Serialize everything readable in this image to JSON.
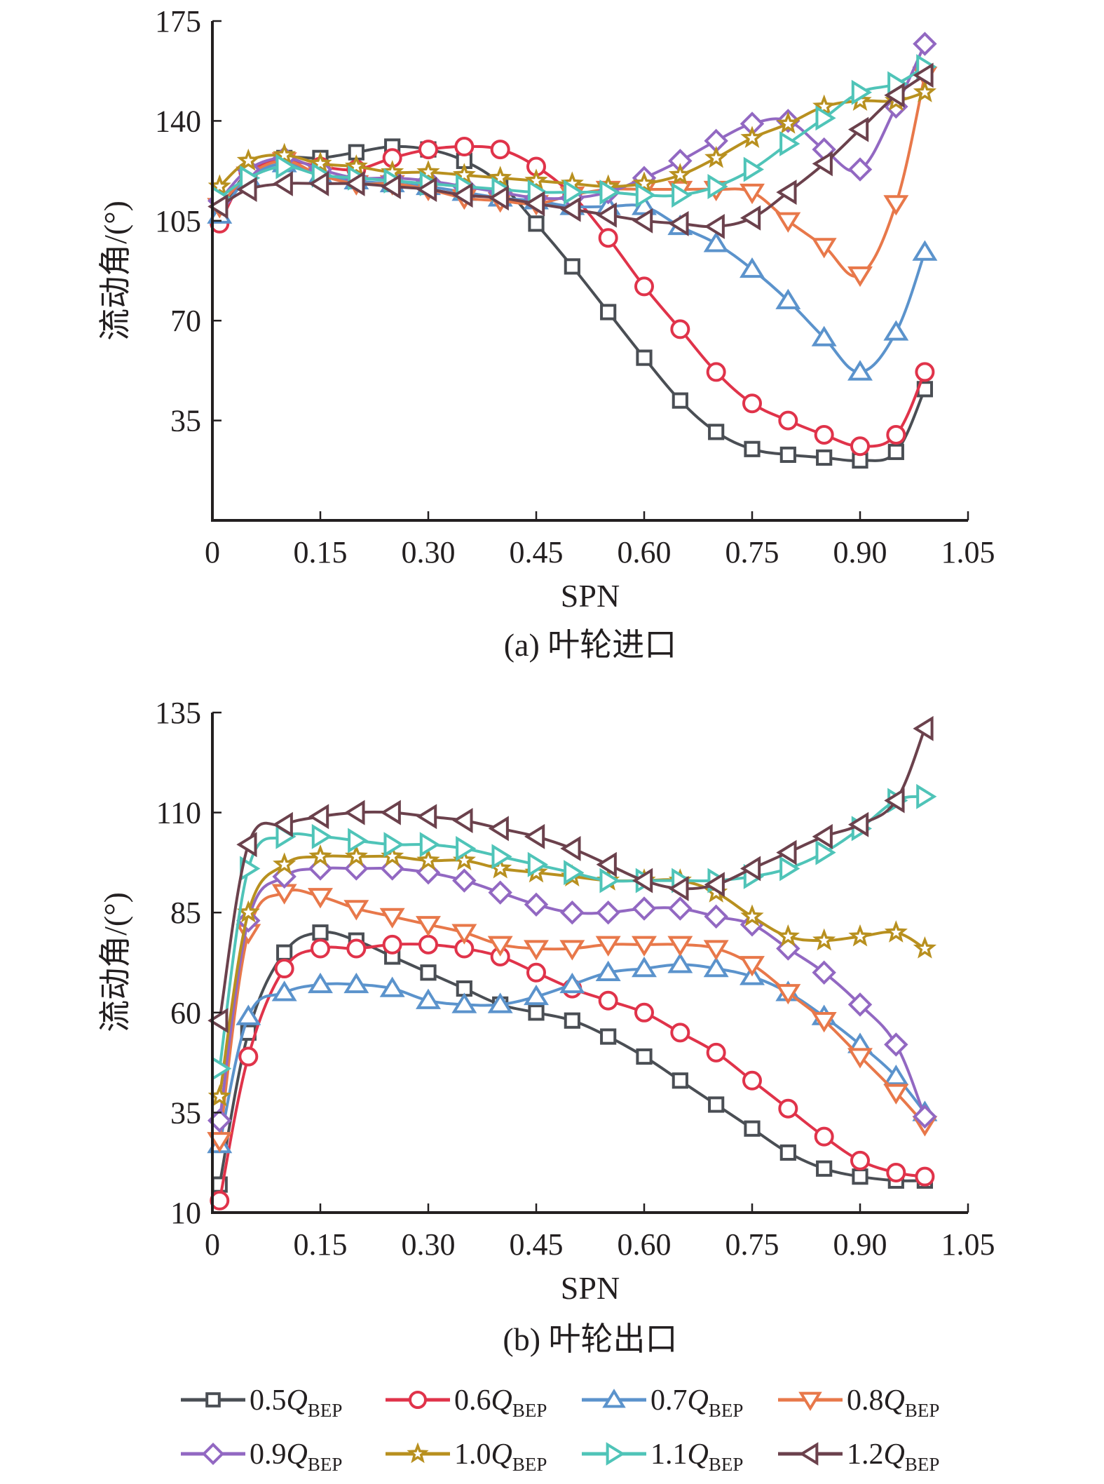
{
  "figure": {
    "legend": [
      {
        "prefix": "0.5",
        "q": "Q",
        "sub": "BEP",
        "color": "#4a4e54",
        "marker": "square"
      },
      {
        "prefix": "0.6",
        "q": "Q",
        "sub": "BEP",
        "color": "#e0334a",
        "marker": "circle"
      },
      {
        "prefix": "0.7",
        "q": "Q",
        "sub": "BEP",
        "color": "#5b93cc",
        "marker": "triangle-up"
      },
      {
        "prefix": "0.8",
        "q": "Q",
        "sub": "BEP",
        "color": "#e8784a",
        "marker": "triangle-down"
      },
      {
        "prefix": "0.9",
        "q": "Q",
        "sub": "BEP",
        "color": "#9268c2",
        "marker": "diamond"
      },
      {
        "prefix": "1.0",
        "q": "Q",
        "sub": "BEP",
        "color": "#b8901f",
        "marker": "star"
      },
      {
        "prefix": "1.1",
        "q": "Q",
        "sub": "BEP",
        "color": "#4fc4b8",
        "marker": "triangle-right"
      },
      {
        "prefix": "1.2",
        "q": "Q",
        "sub": "BEP",
        "color": "#6b414c",
        "marker": "triangle-left"
      }
    ]
  },
  "chart_data": [
    {
      "type": "line",
      "title": "(a) 叶轮进口",
      "xlabel": "SPN",
      "ylabel": "流动角/(°)",
      "xlim": [
        0,
        1.05
      ],
      "ylim": [
        0,
        175
      ],
      "xticks": [
        "0",
        "0.15",
        "0.30",
        "0.45",
        "0.60",
        "0.75",
        "0.90",
        "1.05"
      ],
      "xtick_values": [
        0,
        0.15,
        0.3,
        0.45,
        0.6,
        0.75,
        0.9,
        1.05
      ],
      "yticks": [
        "35",
        "70",
        "105",
        "140",
        "175"
      ],
      "ytick_values": [
        35,
        70,
        105,
        140,
        175
      ],
      "grid": false,
      "legend_position": "bottom",
      "x": [
        0.01,
        0.05,
        0.1,
        0.15,
        0.2,
        0.25,
        0.3,
        0.35,
        0.4,
        0.45,
        0.5,
        0.55,
        0.6,
        0.65,
        0.7,
        0.75,
        0.8,
        0.85,
        0.9,
        0.95,
        0.99
      ],
      "series": [
        {
          "name": "0.5QBEP",
          "values": [
            108,
            122,
            127,
            127,
            129,
            131,
            130,
            126,
            118,
            104,
            89,
            73,
            57,
            42,
            31,
            25,
            23,
            22,
            21,
            24,
            46
          ]
        },
        {
          "name": "0.6QBEP",
          "values": [
            104,
            122,
            126,
            124,
            123,
            127,
            130,
            131,
            130,
            124,
            114,
            99,
            82,
            67,
            52,
            41,
            35,
            30,
            26,
            30,
            52
          ]
        },
        {
          "name": "0.7QBEP",
          "values": [
            107,
            120,
            125,
            121,
            119,
            118,
            117,
            115,
            113,
            112,
            110,
            110,
            110,
            103,
            97,
            88,
            77,
            64,
            52,
            66,
            94
          ]
        },
        {
          "name": "0.8QBEP",
          "values": [
            110,
            121,
            126,
            121,
            118,
            118,
            116,
            113,
            112,
            111,
            114,
            116,
            116,
            116,
            116,
            115,
            105,
            96,
            86,
            111,
            156
          ]
        },
        {
          "name": "0.9QBEP",
          "values": [
            112,
            123,
            127,
            123,
            120,
            120,
            119,
            117,
            115,
            113,
            113,
            115,
            120,
            126,
            133,
            139,
            140,
            130,
            123,
            145,
            167
          ]
        },
        {
          "name": "1.0QBEP",
          "values": [
            117,
            126,
            128,
            125,
            124,
            122,
            122,
            121,
            120,
            119,
            118,
            117,
            118,
            121,
            127,
            134,
            139,
            145,
            147,
            147,
            150
          ]
        },
        {
          "name": "1.1QBEP",
          "values": [
            113,
            120,
            124,
            121,
            120,
            119,
            118,
            117,
            116,
            115,
            115,
            115,
            114,
            114,
            117,
            123,
            132,
            141,
            150,
            153,
            159
          ]
        },
        {
          "name": "1.2QBEP",
          "values": [
            110,
            116,
            118,
            118,
            118,
            117,
            116,
            114,
            113,
            111,
            109,
            107,
            105,
            104,
            103,
            106,
            115,
            125,
            137,
            149,
            156
          ]
        }
      ]
    },
    {
      "type": "line",
      "title": "(b) 叶轮出口",
      "xlabel": "SPN",
      "ylabel": "流动角/(°)",
      "xlim": [
        0,
        1.05
      ],
      "ylim": [
        10,
        135
      ],
      "xticks": [
        "0",
        "0.15",
        "0.30",
        "0.45",
        "0.60",
        "0.75",
        "0.90",
        "1.05"
      ],
      "xtick_values": [
        0,
        0.15,
        0.3,
        0.45,
        0.6,
        0.75,
        0.9,
        1.05
      ],
      "yticks": [
        "10",
        "35",
        "60",
        "85",
        "110",
        "135"
      ],
      "ytick_values": [
        10,
        35,
        60,
        85,
        110,
        135
      ],
      "grid": false,
      "legend_position": "bottom",
      "x": [
        0.01,
        0.05,
        0.1,
        0.15,
        0.2,
        0.25,
        0.3,
        0.35,
        0.4,
        0.45,
        0.5,
        0.55,
        0.6,
        0.65,
        0.7,
        0.75,
        0.8,
        0.85,
        0.9,
        0.95,
        0.99
      ],
      "series": [
        {
          "name": "0.5QBEP",
          "values": [
            17,
            55,
            75,
            80,
            78,
            74,
            70,
            66,
            62,
            60,
            58,
            54,
            49,
            43,
            37,
            31,
            25,
            21,
            19,
            18,
            18
          ]
        },
        {
          "name": "0.6QBEP",
          "values": [
            13,
            49,
            71,
            76,
            76,
            77,
            77,
            76,
            74,
            70,
            66,
            63,
            60,
            55,
            50,
            43,
            36,
            29,
            23,
            20,
            19
          ]
        },
        {
          "name": "0.7QBEP",
          "values": [
            27,
            59,
            65,
            67,
            67,
            66,
            63,
            62,
            62,
            64,
            67,
            70,
            71,
            72,
            71,
            69,
            65,
            59,
            52,
            44,
            35
          ]
        },
        {
          "name": "0.8QBEP",
          "values": [
            28,
            80,
            90,
            89,
            86,
            84,
            82,
            80,
            77,
            76,
            76,
            77,
            77,
            77,
            76,
            72,
            65,
            58,
            49,
            40,
            32
          ]
        },
        {
          "name": "0.9QBEP",
          "values": [
            33,
            83,
            94,
            96,
            96,
            96,
            95,
            93,
            90,
            87,
            85,
            85,
            86,
            86,
            84,
            82,
            76,
            70,
            62,
            52,
            34
          ]
        },
        {
          "name": "1.0QBEP",
          "values": [
            39,
            85,
            97,
            99,
            99,
            99,
            98,
            98,
            96,
            95,
            94,
            93,
            93,
            93,
            90,
            84,
            79,
            78,
            79,
            80,
            76
          ]
        },
        {
          "name": "1.1QBEP",
          "values": [
            46,
            96,
            104,
            104,
            103,
            102,
            102,
            101,
            99,
            97,
            95,
            93,
            93,
            93,
            93,
            94,
            96,
            100,
            106,
            113,
            114
          ]
        },
        {
          "name": "1.2QBEP",
          "values": [
            58,
            102,
            107,
            109,
            110,
            110,
            109,
            108,
            106,
            104,
            101,
            97,
            93,
            91,
            92,
            96,
            100,
            104,
            107,
            113,
            131
          ]
        }
      ]
    }
  ]
}
